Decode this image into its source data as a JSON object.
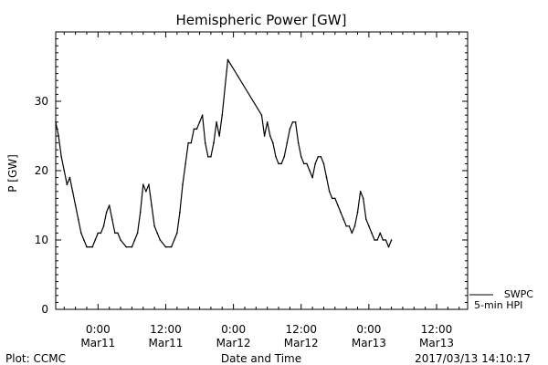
{
  "chart_data": {
    "type": "line",
    "title": "Hemispheric Power [GW]",
    "xlabel": "Date and Time",
    "ylabel": "P [GW]",
    "ylim": [
      0,
      40
    ],
    "xlim": [
      "2017-03-10 16:30",
      "2017-03-13 17:30"
    ],
    "yticks": [
      0,
      10,
      20,
      30
    ],
    "xticks": [
      {
        "time": "2017-03-11 00:00",
        "label": "0:00",
        "sublabel": "Mar11"
      },
      {
        "time": "2017-03-11 12:00",
        "label": "12:00",
        "sublabel": "Mar11"
      },
      {
        "time": "2017-03-12 00:00",
        "label": "0:00",
        "sublabel": "Mar12"
      },
      {
        "time": "2017-03-12 12:00",
        "label": "12:00",
        "sublabel": "Mar12"
      },
      {
        "time": "2017-03-13 00:00",
        "label": "0:00",
        "sublabel": "Mar13"
      },
      {
        "time": "2017-03-13 12:00",
        "label": "12:00",
        "sublabel": "Mar13"
      }
    ],
    "series": [
      {
        "name": "5-min HPI",
        "color": "#000000",
        "points": [
          [
            "2017-03-10 16:30",
            27
          ],
          [
            "2017-03-10 17:00",
            25
          ],
          [
            "2017-03-10 17:30",
            22
          ],
          [
            "2017-03-10 18:00",
            20
          ],
          [
            "2017-03-10 18:30",
            18
          ],
          [
            "2017-03-10 19:00",
            19
          ],
          [
            "2017-03-10 19:30",
            17
          ],
          [
            "2017-03-10 20:00",
            15
          ],
          [
            "2017-03-10 20:30",
            13
          ],
          [
            "2017-03-10 21:00",
            11
          ],
          [
            "2017-03-10 21:30",
            10
          ],
          [
            "2017-03-10 22:00",
            9
          ],
          [
            "2017-03-10 22:30",
            9
          ],
          [
            "2017-03-10 23:00",
            9
          ],
          [
            "2017-03-10 23:30",
            10
          ],
          [
            "2017-03-11 00:00",
            11
          ],
          [
            "2017-03-11 00:30",
            11
          ],
          [
            "2017-03-11 01:00",
            12
          ],
          [
            "2017-03-11 01:30",
            14
          ],
          [
            "2017-03-11 02:00",
            15
          ],
          [
            "2017-03-11 02:30",
            13
          ],
          [
            "2017-03-11 03:00",
            11
          ],
          [
            "2017-03-11 03:30",
            11
          ],
          [
            "2017-03-11 04:00",
            10
          ],
          [
            "2017-03-11 05:00",
            9
          ],
          [
            "2017-03-11 06:00",
            9
          ],
          [
            "2017-03-11 06:30",
            10
          ],
          [
            "2017-03-11 07:00",
            11
          ],
          [
            "2017-03-11 07:30",
            14
          ],
          [
            "2017-03-11 08:00",
            18
          ],
          [
            "2017-03-11 08:30",
            17
          ],
          [
            "2017-03-11 09:00",
            18
          ],
          [
            "2017-03-11 09:30",
            15
          ],
          [
            "2017-03-11 10:00",
            12
          ],
          [
            "2017-03-11 10:30",
            11
          ],
          [
            "2017-03-11 11:00",
            10
          ],
          [
            "2017-03-11 12:00",
            9
          ],
          [
            "2017-03-11 13:00",
            9
          ],
          [
            "2017-03-11 13:30",
            10
          ],
          [
            "2017-03-11 14:00",
            11
          ],
          [
            "2017-03-11 14:30",
            14
          ],
          [
            "2017-03-11 15:00",
            18
          ],
          [
            "2017-03-11 15:30",
            21
          ],
          [
            "2017-03-11 16:00",
            24
          ],
          [
            "2017-03-11 16:30",
            24
          ],
          [
            "2017-03-11 17:00",
            26
          ],
          [
            "2017-03-11 17:30",
            26
          ],
          [
            "2017-03-11 18:00",
            27
          ],
          [
            "2017-03-11 18:30",
            28
          ],
          [
            "2017-03-11 19:00",
            24
          ],
          [
            "2017-03-11 19:30",
            22
          ],
          [
            "2017-03-11 20:00",
            22
          ],
          [
            "2017-03-11 20:30",
            24
          ],
          [
            "2017-03-11 21:00",
            27
          ],
          [
            "2017-03-11 21:30",
            25
          ],
          [
            "2017-03-11 22:00",
            28
          ],
          [
            "2017-03-11 23:00",
            36
          ],
          [
            "2017-03-12 05:00",
            28
          ],
          [
            "2017-03-12 05:30",
            25
          ],
          [
            "2017-03-12 06:00",
            27
          ],
          [
            "2017-03-12 06:30",
            25
          ],
          [
            "2017-03-12 07:00",
            24
          ],
          [
            "2017-03-12 07:30",
            22
          ],
          [
            "2017-03-12 08:00",
            21
          ],
          [
            "2017-03-12 08:30",
            21
          ],
          [
            "2017-03-12 09:00",
            22
          ],
          [
            "2017-03-12 09:30",
            24
          ],
          [
            "2017-03-12 10:00",
            26
          ],
          [
            "2017-03-12 10:30",
            27
          ],
          [
            "2017-03-12 11:00",
            27
          ],
          [
            "2017-03-12 11:30",
            24
          ],
          [
            "2017-03-12 12:00",
            22
          ],
          [
            "2017-03-12 12:30",
            21
          ],
          [
            "2017-03-12 13:00",
            21
          ],
          [
            "2017-03-12 13:30",
            20
          ],
          [
            "2017-03-12 14:00",
            19
          ],
          [
            "2017-03-12 14:30",
            21
          ],
          [
            "2017-03-12 15:00",
            22
          ],
          [
            "2017-03-12 15:30",
            22
          ],
          [
            "2017-03-12 16:00",
            21
          ],
          [
            "2017-03-12 16:30",
            19
          ],
          [
            "2017-03-12 17:00",
            17
          ],
          [
            "2017-03-12 17:30",
            16
          ],
          [
            "2017-03-12 18:00",
            16
          ],
          [
            "2017-03-12 18:30",
            15
          ],
          [
            "2017-03-12 19:00",
            14
          ],
          [
            "2017-03-12 19:30",
            13
          ],
          [
            "2017-03-12 20:00",
            12
          ],
          [
            "2017-03-12 20:30",
            12
          ],
          [
            "2017-03-12 21:00",
            11
          ],
          [
            "2017-03-12 21:30",
            12
          ],
          [
            "2017-03-12 22:00",
            14
          ],
          [
            "2017-03-12 22:30",
            17
          ],
          [
            "2017-03-12 23:00",
            16
          ],
          [
            "2017-03-12 23:30",
            13
          ],
          [
            "2017-03-13 00:00",
            12
          ],
          [
            "2017-03-13 00:30",
            11
          ],
          [
            "2017-03-13 01:00",
            10
          ],
          [
            "2017-03-13 01:30",
            10
          ],
          [
            "2017-03-13 02:00",
            11
          ],
          [
            "2017-03-13 02:30",
            10
          ],
          [
            "2017-03-13 03:00",
            10
          ],
          [
            "2017-03-13 03:30",
            9
          ],
          [
            "2017-03-13 04:00",
            10
          ]
        ]
      }
    ],
    "legend": {
      "placement": "right-bottom",
      "entries": [
        {
          "label": "SWPC",
          "swatch": true
        },
        {
          "label": "5-min HPI",
          "swatch": false
        }
      ]
    }
  },
  "footer": {
    "left": "Plot: CCMC",
    "center": "Date and Time",
    "right": "2017/03/13 14:10:17"
  }
}
